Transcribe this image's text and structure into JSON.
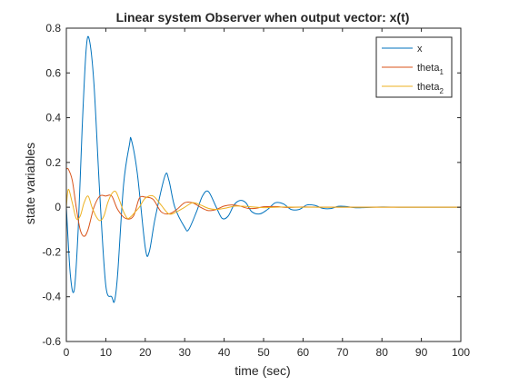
{
  "chart_data": {
    "type": "line",
    "title": "Linear system Observer when output vector: x(t)",
    "xlabel": "time (sec)",
    "ylabel": "state variables",
    "xlim": [
      0,
      100
    ],
    "ylim": [
      -0.6,
      0.8
    ],
    "xticks": [
      0,
      10,
      20,
      30,
      40,
      50,
      60,
      70,
      80,
      90,
      100
    ],
    "yticks": [
      -0.6,
      -0.4,
      -0.2,
      0,
      0.2,
      0.4,
      0.6,
      0.8
    ],
    "grid": false,
    "legend_position": "top-right",
    "series": [
      {
        "name": "x",
        "color": "#0072BD",
        "x": [
          0,
          1,
          2,
          3,
          4,
          5,
          5.8,
          7,
          8.5,
          10,
          11.5,
          12.2,
          13,
          14.5,
          16,
          16.5,
          18,
          20,
          21,
          22.5,
          25,
          26,
          27.5,
          30,
          31,
          33,
          34.5,
          36,
          38,
          39.5,
          41,
          42.5,
          44,
          45.5,
          47,
          49,
          51,
          53,
          55,
          57,
          59,
          61,
          63,
          65,
          67,
          69,
          71,
          73,
          75,
          80,
          85,
          90,
          95,
          100
        ],
        "y": [
          0,
          -0.3,
          -0.37,
          -0.1,
          0.35,
          0.7,
          0.75,
          0.55,
          0.05,
          -0.35,
          -0.4,
          -0.42,
          -0.3,
          0.1,
          0.28,
          0.3,
          0.15,
          -0.18,
          -0.2,
          -0.05,
          0.14,
          0.12,
          0.0,
          -0.09,
          -0.1,
          -0.02,
          0.05,
          0.07,
          0.0,
          -0.05,
          -0.04,
          0.01,
          0.03,
          0.02,
          -0.02,
          -0.03,
          -0.01,
          0.02,
          0.015,
          -0.01,
          -0.01,
          0.01,
          0.008,
          -0.005,
          -0.006,
          0.004,
          0.003,
          -0.002,
          -0.002,
          0.001,
          0.0,
          0.0,
          0.0,
          0.0
        ]
      },
      {
        "name": "theta_1",
        "color": "#D95319",
        "x": [
          0,
          0.5,
          1.5,
          2.5,
          3.5,
          4.5,
          5.5,
          7,
          8.5,
          10,
          11.5,
          13,
          15,
          17,
          18.5,
          20,
          22,
          24,
          26,
          28,
          30,
          32,
          34,
          36,
          38,
          40,
          42,
          44,
          46,
          48,
          50,
          53,
          56,
          60,
          65,
          70,
          75,
          80,
          90,
          100
        ],
        "y": [
          0.17,
          0.17,
          0.12,
          0.0,
          -0.1,
          -0.13,
          -0.1,
          0.0,
          0.05,
          0.05,
          0.05,
          -0.01,
          -0.05,
          -0.04,
          0.04,
          0.045,
          0.035,
          -0.02,
          -0.03,
          -0.01,
          0.02,
          0.02,
          0.0,
          -0.015,
          -0.01,
          0.005,
          0.01,
          0.005,
          -0.005,
          -0.005,
          0.002,
          0.003,
          -0.001,
          0.001,
          0.0,
          0.0,
          0.0,
          0.0,
          0.0,
          0.0
        ]
      },
      {
        "name": "theta_2",
        "color": "#EDB120",
        "x": [
          0,
          0.5,
          1.5,
          2.5,
          3.5,
          4.5,
          5.5,
          6.5,
          7.5,
          8.5,
          9.5,
          10.5,
          11.5,
          12.5,
          13.5,
          14.5,
          15.5,
          16.5,
          17.5,
          18.5,
          20,
          22,
          24,
          26,
          28,
          30,
          32,
          34,
          36,
          38,
          40,
          43,
          46,
          50,
          55,
          60,
          70,
          80,
          90,
          100
        ],
        "y": [
          0.0,
          0.08,
          0.02,
          -0.05,
          -0.04,
          0.02,
          0.05,
          0.0,
          -0.04,
          -0.06,
          -0.04,
          0.02,
          0.06,
          0.07,
          0.03,
          -0.02,
          -0.05,
          -0.04,
          -0.02,
          0.0,
          0.04,
          0.05,
          0.01,
          -0.03,
          -0.02,
          0.0,
          0.02,
          0.01,
          -0.005,
          -0.01,
          -0.005,
          0.005,
          0.003,
          -0.002,
          0.001,
          0.0,
          0.0,
          0.0,
          0.0,
          0.0
        ]
      }
    ]
  }
}
